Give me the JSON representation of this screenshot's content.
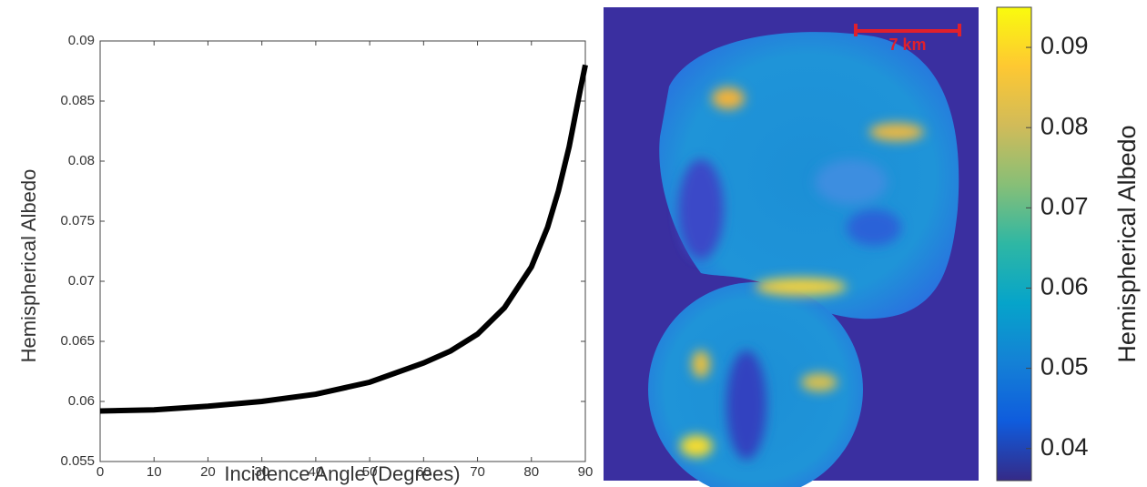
{
  "chart_data": [
    {
      "type": "line",
      "xlabel": "Incidence Angle (Degrees)",
      "ylabel": "Hemispherical Albedo",
      "x": [
        0,
        10,
        20,
        30,
        40,
        50,
        60,
        65,
        70,
        75,
        80,
        83,
        85,
        87,
        88,
        89,
        90
      ],
      "values": [
        0.0592,
        0.0593,
        0.0596,
        0.06,
        0.0606,
        0.0616,
        0.0632,
        0.0642,
        0.0656,
        0.0678,
        0.0712,
        0.0745,
        0.0775,
        0.0812,
        0.0835,
        0.0858,
        0.088
      ],
      "color": "#000000",
      "xlim": [
        0,
        90
      ],
      "xticks": [
        0,
        10,
        20,
        30,
        40,
        50,
        60,
        70,
        80,
        90
      ],
      "ylim": [
        0.055,
        0.09
      ],
      "yticks": [
        0.055,
        0.06,
        0.065,
        0.07,
        0.075,
        0.08,
        0.085,
        0.09
      ]
    },
    {
      "type": "image",
      "scale_bar_label": "7 km",
      "colorbar_label": "Hemispherical Albedo",
      "clim": [
        0.036,
        0.095
      ],
      "colorbar_ticks": [
        0.04,
        0.05,
        0.06,
        0.07,
        0.08,
        0.09
      ],
      "colormap": [
        "#352a87",
        "#0f5cdd",
        "#1481d6",
        "#06a4ca",
        "#2eb7a4",
        "#87bf77",
        "#d1bb59",
        "#fec832",
        "#f9fb0e"
      ]
    }
  ]
}
